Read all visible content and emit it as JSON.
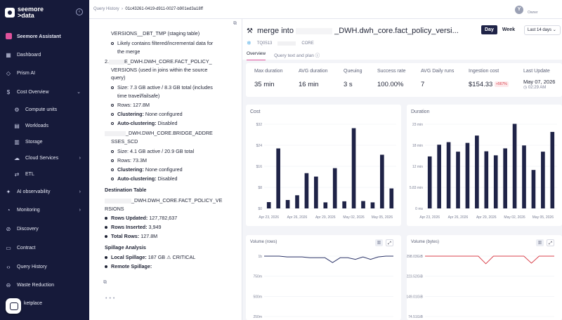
{
  "sidebar": {
    "logo_text": "seemore\n>data",
    "items": [
      {
        "label": "Seemore Assistant",
        "icon": "assistant-icon"
      },
      {
        "label": "Dashboard",
        "icon": "dashboard-icon"
      },
      {
        "label": "Prism AI",
        "icon": "prism-icon"
      },
      {
        "label": "Cost Overview",
        "icon": "dollar-icon"
      },
      {
        "label": "Compute units",
        "icon": "cpu-icon"
      },
      {
        "label": "Workloads",
        "icon": "workloads-icon"
      },
      {
        "label": "Storage",
        "icon": "database-icon"
      },
      {
        "label": "Cloud Services",
        "icon": "cloud-icon"
      },
      {
        "label": "ETL",
        "icon": "etl-icon"
      },
      {
        "label": "AI observability",
        "icon": "ai-icon"
      },
      {
        "label": "Monitoring",
        "icon": "monitor-icon"
      },
      {
        "label": "Discovery",
        "icon": "discovery-icon"
      },
      {
        "label": "Contract",
        "icon": "contract-icon"
      },
      {
        "label": "Query History",
        "icon": "code-icon"
      },
      {
        "label": "Waste Reduction",
        "icon": "waste-icon"
      },
      {
        "label": "ketplace",
        "icon": "marketplace-icon"
      }
    ]
  },
  "topbar": {
    "breadcrumb_root": "Query History",
    "breadcrumb_sep": "›",
    "breadcrumb_id": "01c43261-0419-d911-0027-b901ed3a18ff",
    "avatar_letter": "Y",
    "user_role": "Owner"
  },
  "doc": {
    "l1": "VERSIONS__DBT_TMP (staging table)",
    "l2": "Likely contains filtered/incremental data for",
    "l3": "the merge",
    "l4a": "2.",
    "l4b": "E_DWH.DWH_CORE.FACT_POLICY_",
    "l5": "VERSIONS (used in joins within the source",
    "l6": "query)",
    "l7": "Size: 7.3 GB active / 8.3 GB total (includes",
    "l8": "time travel/failsafe)",
    "l9": "Rows: 127.8M",
    "l10k": "Clustering:",
    "l10v": " None configured",
    "l11k": "Auto-clustering:",
    "l11v": " Disabled",
    "l12": "_DWH.DWH_CORE.BRIDGE_ADDRE",
    "l13": "SSES_SCD",
    "l14": "Size: 4.1 GB active / 20.9 GB total",
    "l15": "Rows: 73.3M",
    "l16k": "Clustering:",
    "l16v": " None configured",
    "l17k": "Auto-clustering:",
    "l17v": " Disabled",
    "l18": "Destination Table",
    "l19": "_DWH.DWH_CORE.FACT_POLICY_VE",
    "l20": "RSIONS",
    "l21k": "Rows Updated:",
    "l21v": " 127,782,637",
    "l22k": "Rows Inserted:",
    "l22v": " 3,949",
    "l23k": "Total Rows:",
    "l23v": " 127.8M",
    "l24": "Spillage Analysis",
    "l25k": "Local Spillage:",
    "l25v": " 187 GB ⚠ CRITICAL",
    "l26k": "Remote Spillage:",
    "l26v": ""
  },
  "header": {
    "title_prefix": "merge into",
    "title_suffix": "_DWH.dwh_core.fact_policy_versi...",
    "toggle_day": "Day",
    "toggle_week": "Week",
    "range": "Last 14 days ⌄",
    "warehouse": "TQ0513",
    "schema": "CORE",
    "tab_overview": "Overview",
    "tab_query": "Query text and plan ⓘ"
  },
  "stats": [
    {
      "label": "Max duration",
      "value": "35 min"
    },
    {
      "label": "AVG duration",
      "value": "16 min"
    },
    {
      "label": "Queuing",
      "value": "3 s"
    },
    {
      "label": "Success rate",
      "value": "100.00%"
    },
    {
      "label": "AVG Daily runs",
      "value": "7"
    },
    {
      "label": "Ingestion cost",
      "value": "$154.33",
      "badge": "+567%"
    },
    {
      "label": "Last Update",
      "value": "May 07, 2026",
      "sub": "02:29 AM"
    }
  ],
  "colors": {
    "bar": "#1f2347",
    "line_rows": "#2d3569",
    "line_bytes": "#d9434d",
    "accent": "#e0529c"
  },
  "chart_data": [
    {
      "type": "bar",
      "title": "Cost",
      "x": [
        "Apr 23",
        "Apr 24",
        "Apr 25",
        "Apr 26",
        "Apr 27",
        "Apr 28",
        "Apr 29",
        "Apr 30",
        "May 01",
        "May 02",
        "May 03",
        "May 04",
        "May 05",
        "May 06"
      ],
      "values": [
        2.4,
        22.8,
        3.2,
        5,
        13.4,
        12.1,
        2.3,
        15.3,
        2.7,
        30.5,
        2.8,
        2.3,
        20.4,
        7.6
      ],
      "x_tick_labels": [
        "Apr 23, 2026",
        "Apr 26, 2026",
        "Apr 29, 2026",
        "May 02, 2026",
        "May 05, 2026"
      ],
      "y_tick_labels": [
        "$0",
        "$8",
        "$16",
        "$24",
        "$32"
      ],
      "ylim": [
        0,
        32
      ]
    },
    {
      "type": "bar",
      "title": "Duration",
      "x": [
        "Apr 23",
        "Apr 24",
        "Apr 25",
        "Apr 26",
        "Apr 27",
        "Apr 28",
        "Apr 29",
        "Apr 30",
        "May 01",
        "May 02",
        "May 03",
        "May 04",
        "May 05",
        "May 06"
      ],
      "values": [
        14.2,
        17.4,
        18.1,
        15.5,
        17.9,
        19.9,
        15.6,
        14.5,
        16.4,
        23.1,
        17.2,
        10.5,
        15.5,
        20.9
      ],
      "x_tick_labels": [
        "Apr 23, 2026",
        "Apr 26, 2026",
        "Apr 29, 2026",
        "May 02, 2026",
        "May 05, 2026"
      ],
      "y_tick_labels": [
        "0 ms",
        "5.83 min",
        "12 min",
        "18 min",
        "23 min"
      ],
      "ylim": [
        0,
        23
      ]
    },
    {
      "type": "line",
      "title": "Volume (rows)",
      "values": [
        1.0,
        1.0,
        1.0,
        0.99,
        0.99,
        0.99,
        0.98,
        0.98,
        0.98,
        0.92,
        0.98,
        0.98,
        0.96,
        0.99,
        0.96,
        0.99,
        1.0,
        1.0
      ],
      "y_tick_labels": [
        "1b",
        "750m",
        "500m",
        "250m"
      ],
      "ylim": [
        0,
        1.0
      ]
    },
    {
      "type": "line",
      "title": "Volume (bytes)",
      "values": [
        298,
        298,
        298,
        298,
        298,
        298,
        298,
        298,
        270,
        298,
        298,
        298,
        298,
        298,
        272,
        298,
        298,
        298
      ],
      "y_tick_labels": [
        "298.03GiB",
        "223.52GiB",
        "149.01GiB",
        "74.51GiB"
      ],
      "ylim": [
        0,
        298
      ]
    }
  ]
}
